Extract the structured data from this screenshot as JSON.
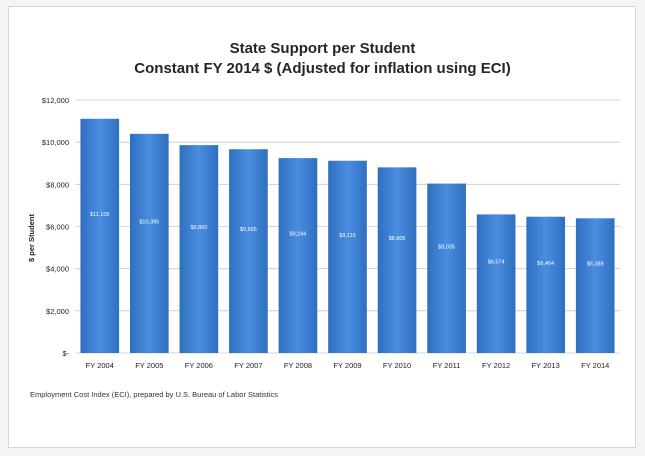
{
  "chart_data": {
    "type": "bar",
    "title": "State Support per Student",
    "subtitle": "Constant FY 2014 $ (Adjusted for inflation using ECI)",
    "ylabel": "$ per Student",
    "xlabel": "",
    "categories": [
      "FY 2004",
      "FY 2005",
      "FY 2006",
      "FY 2007",
      "FY 2008",
      "FY 2009",
      "FY 2010",
      "FY 2011",
      "FY 2012",
      "FY 2013",
      "FY 2014"
    ],
    "values": [
      11109,
      10395,
      9860,
      9665,
      9244,
      9119,
      8805,
      8035,
      6574,
      6464,
      6389
    ],
    "data_labels": [
      "$11,109",
      "$10,395",
      "$9,860",
      "$9,665",
      "$9,244",
      "$9,119",
      "$8,805",
      "$8,035",
      "$6,574",
      "$6,464",
      "$6,389"
    ],
    "yticks": [
      0,
      2000,
      4000,
      6000,
      8000,
      10000,
      12000
    ],
    "ytick_labels": [
      "$-",
      "$2,000",
      "$4,000",
      "$6,000",
      "$8,000",
      "$10,000",
      "$12,000"
    ],
    "ylim": [
      0,
      12000
    ],
    "grid": true,
    "legend": "none",
    "bar_color": "#3d7fd0",
    "source": "Employment Cost Index (ECI), prepared by U.S. Bureau of Labor Statistics"
  }
}
